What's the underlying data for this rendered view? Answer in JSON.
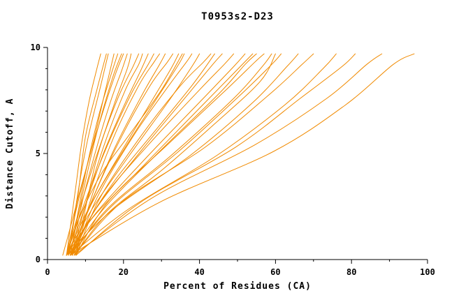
{
  "chart_data": {
    "type": "line",
    "title": "T0953s2-D23",
    "xlabel": "Percent of Residues (CA)",
    "ylabel": "Distance Cutoff, A",
    "xlim": [
      0,
      100
    ],
    "ylim": [
      0,
      10
    ],
    "x_major_ticks": [
      0,
      20,
      40,
      60,
      80,
      100
    ],
    "x_minor_ticks": [
      10,
      30,
      50,
      70,
      90
    ],
    "y_major_ticks": [
      0,
      5,
      10
    ],
    "y_minor_ticks": [
      1,
      2,
      3,
      4,
      6,
      7,
      8,
      9
    ],
    "grid": "off",
    "legend": "none",
    "line_color": "#f08a00",
    "axis_color": "#000000",
    "background": "#ffffff",
    "series_note": "each curve = one model accuracy curve: x = percent of CA residues under distance cutoff y (Angstrom)",
    "curves": [
      [
        [
          5,
          0.2
        ],
        [
          6,
          1.5
        ],
        [
          7.5,
          3.5
        ],
        [
          9,
          5.5
        ],
        [
          11,
          7.5
        ],
        [
          13,
          9
        ],
        [
          14,
          9.7
        ]
      ],
      [
        [
          5.5,
          0.2
        ],
        [
          7,
          2
        ],
        [
          9,
          4.2
        ],
        [
          11,
          6
        ],
        [
          14,
          8.2
        ],
        [
          16,
          9.7
        ]
      ],
      [
        [
          4,
          0.2
        ],
        [
          6,
          1.5
        ],
        [
          8.5,
          3.2
        ],
        [
          12,
          5.5
        ],
        [
          15,
          7.8
        ],
        [
          17.5,
          9.7
        ]
      ],
      [
        [
          6,
          0.2
        ],
        [
          8,
          2.2
        ],
        [
          10.5,
          4.5
        ],
        [
          13.5,
          6.8
        ],
        [
          16.5,
          8.6
        ],
        [
          18.5,
          9.7
        ]
      ],
      [
        [
          5,
          0.2
        ],
        [
          7.5,
          2.3
        ],
        [
          11,
          4.8
        ],
        [
          15,
          7.2
        ],
        [
          18,
          8.8
        ],
        [
          20,
          9.7
        ]
      ],
      [
        [
          6.5,
          0.2
        ],
        [
          9,
          2.6
        ],
        [
          12.5,
          5
        ],
        [
          16.5,
          7.4
        ],
        [
          19.5,
          8.9
        ],
        [
          21,
          9.7
        ]
      ],
      [
        [
          7.5,
          0.2
        ],
        [
          9.5,
          2
        ],
        [
          13,
          4.8
        ],
        [
          17.5,
          7.3
        ],
        [
          21,
          9
        ],
        [
          22,
          9.7
        ]
      ],
      [
        [
          5,
          0.2
        ],
        [
          8.5,
          2.4
        ],
        [
          13.5,
          5.2
        ],
        [
          18.5,
          7.6
        ],
        [
          22.5,
          9.1
        ],
        [
          24,
          9.7
        ]
      ],
      [
        [
          6.5,
          0.2
        ],
        [
          10.5,
          2.9
        ],
        [
          15.5,
          5.7
        ],
        [
          20.5,
          8
        ],
        [
          24,
          9.2
        ],
        [
          25,
          9.7
        ]
      ],
      [
        [
          5.5,
          0.2
        ],
        [
          9.5,
          2.3
        ],
        [
          14.5,
          4.9
        ],
        [
          20,
          7.2
        ],
        [
          24.5,
          8.9
        ],
        [
          26.5,
          9.7
        ]
      ],
      [
        [
          5,
          0.2
        ],
        [
          9.8,
          2.7
        ],
        [
          15.8,
          5.4
        ],
        [
          22,
          7.8
        ],
        [
          26.5,
          9.2
        ],
        [
          28,
          9.7
        ]
      ],
      [
        [
          7.5,
          0.2
        ],
        [
          11.5,
          2.9
        ],
        [
          17.5,
          5.8
        ],
        [
          24,
          8.2
        ],
        [
          28,
          9.3
        ],
        [
          29.5,
          9.7
        ]
      ],
      [
        [
          6,
          0.2
        ],
        [
          10.8,
          2.4
        ],
        [
          17.8,
          5.3
        ],
        [
          25,
          7.8
        ],
        [
          29.5,
          9.2
        ],
        [
          31,
          9.7
        ]
      ],
      [
        [
          6.5,
          0.2
        ],
        [
          12,
          2.9
        ],
        [
          19.5,
          5.8
        ],
        [
          27,
          8.2
        ],
        [
          31.5,
          9.3
        ],
        [
          33,
          9.7
        ]
      ],
      [
        [
          5,
          0.2
        ],
        [
          10.8,
          2.4
        ],
        [
          18.8,
          4.9
        ],
        [
          27.5,
          7.5
        ],
        [
          32.5,
          9
        ],
        [
          34.5,
          9.7
        ]
      ],
      [
        [
          6,
          0.2
        ],
        [
          11.8,
          2.7
        ],
        [
          20.5,
          5.3
        ],
        [
          29.5,
          7.8
        ],
        [
          34.5,
          9.2
        ],
        [
          36,
          9.7
        ]
      ],
      [
        [
          7,
          0.2
        ],
        [
          13,
          2.9
        ],
        [
          22.5,
          5.8
        ],
        [
          31.5,
          8.1
        ],
        [
          36.5,
          9.3
        ],
        [
          38,
          9.7
        ]
      ],
      [
        [
          5,
          0.2
        ],
        [
          11.8,
          2.4
        ],
        [
          21.5,
          4.9
        ],
        [
          32,
          7.5
        ],
        [
          38,
          9.1
        ],
        [
          40,
          9.7
        ]
      ],
      [
        [
          7.5,
          0.2
        ],
        [
          13.8,
          2.9
        ],
        [
          24.5,
          5.8
        ],
        [
          35,
          8.2
        ],
        [
          41,
          9.3
        ],
        [
          43,
          9.7
        ]
      ],
      [
        [
          6,
          0.2
        ],
        [
          12.8,
          2.4
        ],
        [
          24.5,
          5.1
        ],
        [
          37,
          7.8
        ],
        [
          43.5,
          9.2
        ],
        [
          46,
          9.7
        ]
      ],
      [
        [
          6.5,
          0.2
        ],
        [
          13.8,
          2.7
        ],
        [
          26.5,
          5.4
        ],
        [
          40,
          8
        ],
        [
          46.5,
          9.2
        ],
        [
          49,
          9.7
        ]
      ],
      [
        [
          5,
          0.2
        ],
        [
          12.8,
          2.2
        ],
        [
          26.5,
          4.9
        ],
        [
          41,
          7.6
        ],
        [
          49,
          9.1
        ],
        [
          52,
          9.7
        ]
      ],
      [
        [
          6,
          0.2
        ],
        [
          14.8,
          2.4
        ],
        [
          29.5,
          5.1
        ],
        [
          45,
          7.8
        ],
        [
          52,
          9.2
        ],
        [
          55,
          9.7
        ]
      ],
      [
        [
          7.5,
          0.2
        ],
        [
          15.8,
          2.7
        ],
        [
          31.5,
          5.4
        ],
        [
          47,
          8
        ],
        [
          54.5,
          9.3
        ],
        [
          57,
          9.7
        ]
      ],
      [
        [
          6.5,
          0.2
        ],
        [
          15.8,
          2.4
        ],
        [
          32.5,
          4.9
        ],
        [
          49,
          7.6
        ],
        [
          56.5,
          9.1
        ],
        [
          59,
          9.7
        ]
      ],
      [
        [
          6,
          0.2
        ],
        [
          16.8,
          2.5
        ],
        [
          34.5,
          5.1
        ],
        [
          51,
          7.8
        ],
        [
          59,
          9.2
        ],
        [
          61.5,
          9.7
        ]
      ],
      [
        [
          5,
          0.2
        ],
        [
          17.5,
          2.4
        ],
        [
          37.5,
          4.9
        ],
        [
          54,
          7.4
        ],
        [
          63,
          9.1
        ],
        [
          66,
          9.7
        ]
      ],
      [
        [
          7,
          0.2
        ],
        [
          19.5,
          2.7
        ],
        [
          41.5,
          5.3
        ],
        [
          58.5,
          7.8
        ],
        [
          67,
          9.2
        ],
        [
          70,
          9.7
        ]
      ],
      [
        [
          6,
          0.2
        ],
        [
          21.5,
          2.4
        ],
        [
          44.5,
          4.9
        ],
        [
          62.5,
          7.3
        ],
        [
          72.5,
          9
        ],
        [
          76,
          9.7
        ]
      ],
      [
        [
          7.5,
          0.2
        ],
        [
          24.5,
          2.7
        ],
        [
          49.5,
          5.3
        ],
        [
          66.5,
          7.6
        ],
        [
          77.5,
          9.1
        ],
        [
          81,
          9.7
        ]
      ],
      [
        [
          7,
          0.2
        ],
        [
          27.5,
          2.9
        ],
        [
          54.5,
          5.4
        ],
        [
          73.5,
          7.6
        ],
        [
          84,
          9.2
        ],
        [
          88,
          9.7
        ]
      ],
      [
        [
          6,
          0.2
        ],
        [
          29.5,
          2.7
        ],
        [
          59.5,
          5.1
        ],
        [
          78.5,
          7.3
        ],
        [
          91,
          9.2
        ],
        [
          96.5,
          9.7
        ]
      ],
      [
        [
          5.5,
          0.2
        ],
        [
          8,
          3
        ],
        [
          10,
          5.8
        ],
        [
          13,
          8
        ],
        [
          15.5,
          9.7
        ]
      ],
      [
        [
          6,
          0.2
        ],
        [
          9.5,
          3.3
        ],
        [
          13,
          6
        ],
        [
          17,
          8.5
        ],
        [
          19.5,
          9.7
        ]
      ],
      [
        [
          5,
          0.2
        ],
        [
          8,
          1.8
        ],
        [
          14,
          4
        ],
        [
          22,
          6
        ],
        [
          30,
          8
        ],
        [
          35.5,
          9.7
        ]
      ],
      [
        [
          6.5,
          0.2
        ],
        [
          10,
          1.6
        ],
        [
          18,
          3.8
        ],
        [
          28,
          6
        ],
        [
          38,
          8.2
        ],
        [
          44,
          9.7
        ]
      ],
      [
        [
          5.5,
          0.2
        ],
        [
          12,
          2
        ],
        [
          24,
          4.2
        ],
        [
          36,
          6.4
        ],
        [
          48,
          8.6
        ],
        [
          54,
          9.7
        ]
      ],
      [
        [
          7,
          0.2
        ],
        [
          16,
          2.2
        ],
        [
          30,
          4.2
        ],
        [
          44,
          6.4
        ],
        [
          56,
          8.4
        ],
        [
          60,
          9.7
        ]
      ]
    ]
  }
}
